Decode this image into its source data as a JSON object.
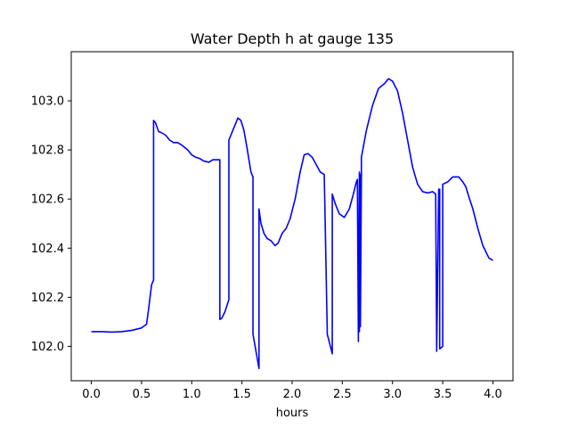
{
  "chart_data": {
    "type": "line",
    "title": "Water Depth h at gauge 135",
    "xlabel": "hours",
    "ylabel": "",
    "xlim": [
      -0.2,
      4.2
    ],
    "ylim": [
      101.86,
      103.2
    ],
    "xticks": [
      0.0,
      0.5,
      1.0,
      1.5,
      2.0,
      2.5,
      3.0,
      3.5,
      4.0
    ],
    "xtick_labels": [
      "0.0",
      "0.5",
      "1.0",
      "1.5",
      "2.0",
      "2.5",
      "3.0",
      "3.5",
      "4.0"
    ],
    "yticks": [
      102.0,
      102.2,
      102.4,
      102.6,
      102.8,
      103.0
    ],
    "ytick_labels": [
      "102.0",
      "102.2",
      "102.4",
      "102.6",
      "102.8",
      "103.0"
    ],
    "grid": false,
    "legend": "none",
    "series": [
      {
        "color": "#0000ff",
        "x": [
          0.0,
          0.1,
          0.2,
          0.3,
          0.4,
          0.5,
          0.55,
          0.57,
          0.6,
          0.62,
          0.62,
          0.64,
          0.67,
          0.7,
          0.74,
          0.78,
          0.82,
          0.86,
          0.9,
          0.93,
          0.96,
          1.0,
          1.04,
          1.08,
          1.12,
          1.17,
          1.21,
          1.24,
          1.28,
          1.28,
          1.3,
          1.33,
          1.37,
          1.37,
          1.4,
          1.43,
          1.46,
          1.49,
          1.52,
          1.55,
          1.59,
          1.61,
          1.61,
          1.67,
          1.67,
          1.69,
          1.72,
          1.75,
          1.79,
          1.83,
          1.86,
          1.9,
          1.94,
          1.98,
          2.03,
          2.08,
          2.12,
          2.16,
          2.2,
          2.24,
          2.28,
          2.32,
          2.35,
          2.35,
          2.4,
          2.4,
          2.43,
          2.47,
          2.52,
          2.57,
          2.61,
          2.64,
          2.65,
          2.66,
          2.66,
          2.67,
          2.67,
          2.68,
          2.68,
          2.69,
          2.69,
          2.74,
          2.8,
          2.86,
          2.92,
          2.96,
          3.0,
          3.05,
          3.1,
          3.15,
          3.2,
          3.25,
          3.3,
          3.35,
          3.4,
          3.43,
          3.44,
          3.44,
          3.46,
          3.47,
          3.47,
          3.5,
          3.5,
          3.55,
          3.6,
          3.66,
          3.7,
          3.73,
          3.76,
          3.8,
          3.85,
          3.9,
          3.96,
          4.0
        ],
        "y": [
          102.06,
          102.06,
          102.058,
          102.06,
          102.065,
          102.075,
          102.09,
          102.15,
          102.25,
          102.27,
          102.92,
          102.91,
          102.875,
          102.87,
          102.86,
          102.84,
          102.83,
          102.83,
          102.82,
          102.81,
          102.8,
          102.78,
          102.77,
          102.765,
          102.755,
          102.75,
          102.76,
          102.76,
          102.76,
          102.11,
          102.115,
          102.14,
          102.19,
          102.84,
          102.87,
          102.9,
          102.93,
          102.92,
          102.88,
          102.81,
          102.71,
          102.69,
          102.05,
          101.91,
          102.56,
          102.5,
          102.46,
          102.44,
          102.43,
          102.41,
          102.42,
          102.46,
          102.48,
          102.52,
          102.6,
          102.71,
          102.78,
          102.785,
          102.77,
          102.74,
          102.71,
          102.7,
          102.06,
          102.05,
          101.97,
          102.62,
          102.58,
          102.54,
          102.525,
          102.56,
          102.62,
          102.67,
          102.68,
          102.02,
          102.05,
          102.71,
          102.06,
          102.7,
          102.08,
          102.7,
          102.77,
          102.88,
          102.98,
          103.05,
          103.07,
          103.09,
          103.08,
          103.04,
          102.95,
          102.84,
          102.73,
          102.66,
          102.63,
          102.625,
          102.63,
          102.62,
          101.98,
          101.98,
          102.64,
          102.64,
          101.99,
          102.0,
          102.66,
          102.67,
          102.69,
          102.69,
          102.67,
          102.65,
          102.61,
          102.56,
          102.48,
          102.41,
          102.36,
          102.35
        ]
      }
    ]
  }
}
